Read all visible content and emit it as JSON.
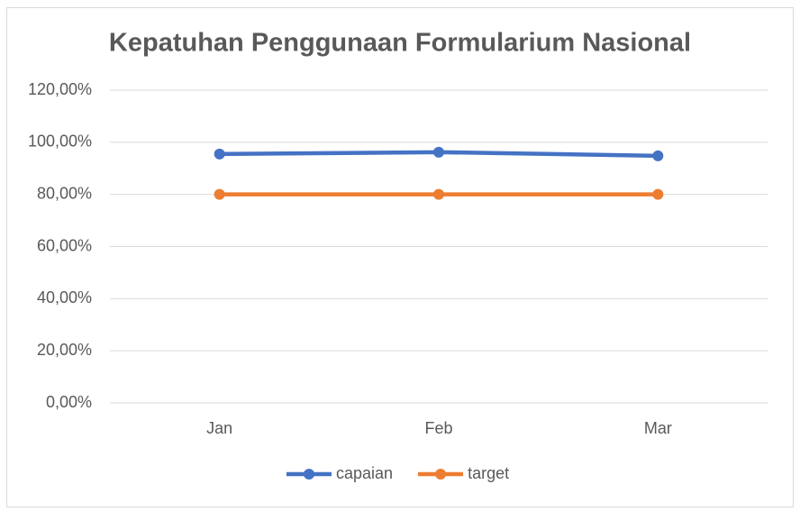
{
  "chart_data": {
    "type": "line",
    "title": "Kepatuhan Penggunaan Formularium Nasional",
    "categories": [
      "Jan",
      "Feb",
      "Mar"
    ],
    "series": [
      {
        "name": "capaian",
        "color": "#4472c4",
        "values": [
          95.5,
          96.2,
          94.8
        ]
      },
      {
        "name": "target",
        "color": "#ed7d31",
        "values": [
          80,
          80,
          80
        ]
      }
    ],
    "ylim": [
      0,
      120
    ],
    "yticks": [
      {
        "value": 0,
        "label": "0,00%"
      },
      {
        "value": 20,
        "label": "20,00%"
      },
      {
        "value": 40,
        "label": "40,00%"
      },
      {
        "value": 60,
        "label": "60,00%"
      },
      {
        "value": 80,
        "label": "80,00%"
      },
      {
        "value": 100,
        "label": "100,00%"
      },
      {
        "value": 120,
        "label": "120,00%"
      }
    ],
    "grid": true,
    "legend": "bottom"
  }
}
